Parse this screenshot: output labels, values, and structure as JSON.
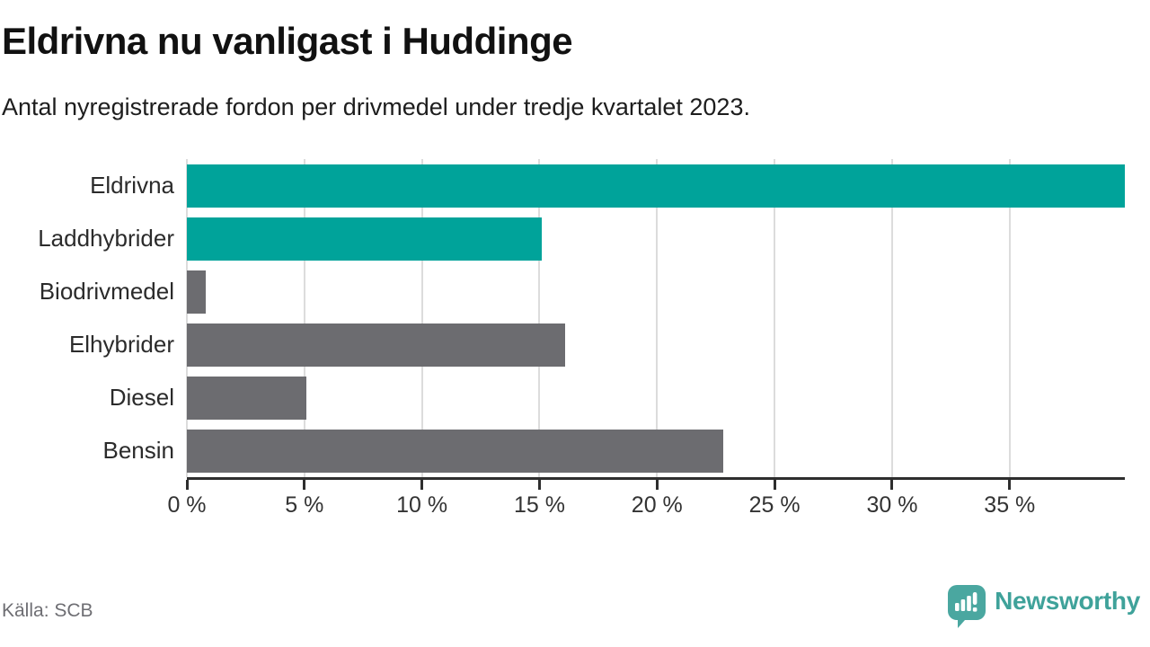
{
  "header": {
    "title": "Eldrivna nu vanligast i Huddinge",
    "subtitle": "Antal nyregistrerade fordon per drivmedel under tredje kvartalet 2023."
  },
  "chart_data": {
    "type": "bar",
    "orientation": "horizontal",
    "title": "Eldrivna nu vanligast i Huddinge",
    "subtitle": "Antal nyregistrerade fordon per drivmedel under tredje kvartalet 2023.",
    "categories": [
      "Eldrivna",
      "Laddhybrider",
      "Biodrivmedel",
      "Elhybrider",
      "Diesel",
      "Bensin"
    ],
    "values": [
      39.9,
      15.1,
      0.8,
      16.1,
      5.1,
      22.8
    ],
    "unit": "%",
    "xlim": [
      0,
      39.9
    ],
    "xticks": [
      0,
      5,
      10,
      15,
      20,
      25,
      30,
      35
    ],
    "xtick_suffix": " %",
    "grid": true,
    "legend": false,
    "bar_color_keys": [
      "teal",
      "teal",
      "gray",
      "gray",
      "gray",
      "gray"
    ]
  },
  "colors": {
    "teal": "#00a39a",
    "gray": "#6c6c70",
    "grid": "#dcdcdc",
    "axis": "#2e2e2e",
    "brand_teal": "#3fa29a",
    "brand_icon": "#4aa7a0"
  },
  "footer": {
    "source": "Källa: SCB",
    "brand": "Newsworthy"
  }
}
